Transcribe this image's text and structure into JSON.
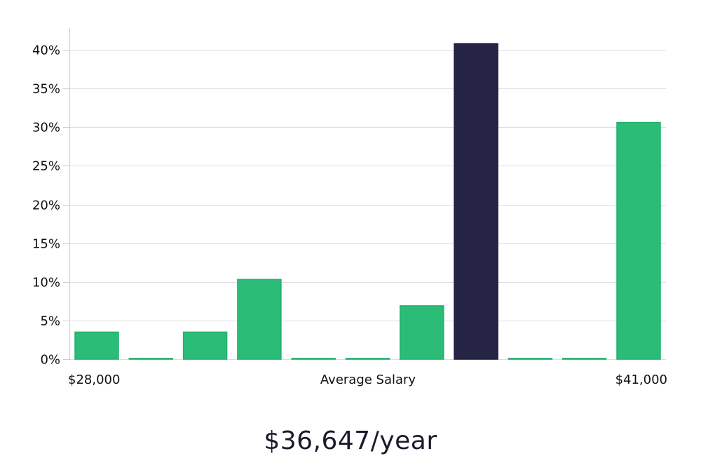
{
  "chart_data": {
    "type": "bar",
    "title": "",
    "xlabel": "Average Salary",
    "ylabel": "",
    "x_min_label": "$28,000",
    "x_max_label": "$41,000",
    "ylim": [
      0,
      42.5
    ],
    "yticks": [
      0,
      5,
      10,
      15,
      20,
      25,
      30,
      35,
      40
    ],
    "ytick_labels": [
      "0%",
      "5%",
      "10%",
      "15%",
      "20%",
      "25%",
      "30%",
      "35%",
      "40%"
    ],
    "grid": true,
    "values": [
      3.5,
      0.1,
      3.5,
      10.3,
      0.1,
      0.1,
      6.9,
      40.8,
      0.1,
      0.1,
      30.6
    ],
    "highlight_index": 7
  },
  "summary": {
    "salary_text": "$36,647/year"
  },
  "colors": {
    "bar": "#2bbd78",
    "bar_stroke": "#22b06d",
    "highlight": "#262445",
    "grid": "#dddddd",
    "axis": "#cccccc"
  }
}
